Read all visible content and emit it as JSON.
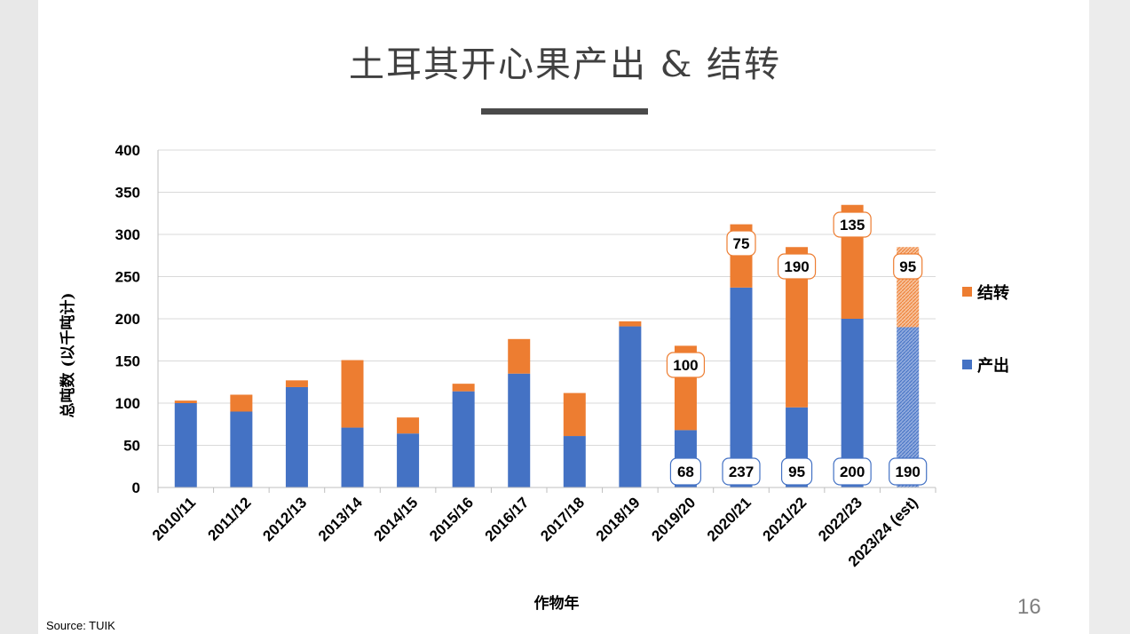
{
  "slide": {
    "title": "土耳其开心果产出 & 结转",
    "page_number": "16",
    "source": "Source: TUIK"
  },
  "colors": {
    "production": "#4472c4",
    "carryover": "#ed7d31",
    "grid": "#d9d9d9",
    "title_rule": "#4a4a4a"
  },
  "chart_data": {
    "type": "bar",
    "stacked": true,
    "title": "",
    "xlabel": "作物年",
    "ylabel": "总吨数 (以千吨计)",
    "ylim": [
      0,
      400
    ],
    "yticks": [
      0,
      50,
      100,
      150,
      200,
      250,
      300,
      350,
      400
    ],
    "grid": true,
    "legend_position": "right",
    "categories": [
      "2010/11",
      "2011/12",
      "2012/13",
      "2013/14",
      "2014/15",
      "2015/16",
      "2016/17",
      "2017/18",
      "2018/19",
      "2019/20",
      "2020/21",
      "2021/22",
      "2022/23",
      "2023/24 (est)"
    ],
    "series": [
      {
        "name": "产出",
        "values": [
          100,
          90,
          119,
          71,
          64,
          114,
          135,
          61,
          191,
          68,
          237,
          95,
          200,
          190
        ]
      },
      {
        "name": "结转",
        "values": [
          3,
          20,
          8,
          80,
          19,
          9,
          41,
          51,
          6,
          100,
          75,
          190,
          135,
          95
        ]
      }
    ],
    "data_labels": [
      {
        "index": 9,
        "bottom": "68",
        "top": "100"
      },
      {
        "index": 10,
        "bottom": "237",
        "top": "75"
      },
      {
        "index": 11,
        "bottom": "95",
        "top": "190"
      },
      {
        "index": 12,
        "bottom": "200",
        "top": "135"
      },
      {
        "index": 13,
        "bottom": "190",
        "top": "95"
      }
    ],
    "estimated_index": 13
  }
}
